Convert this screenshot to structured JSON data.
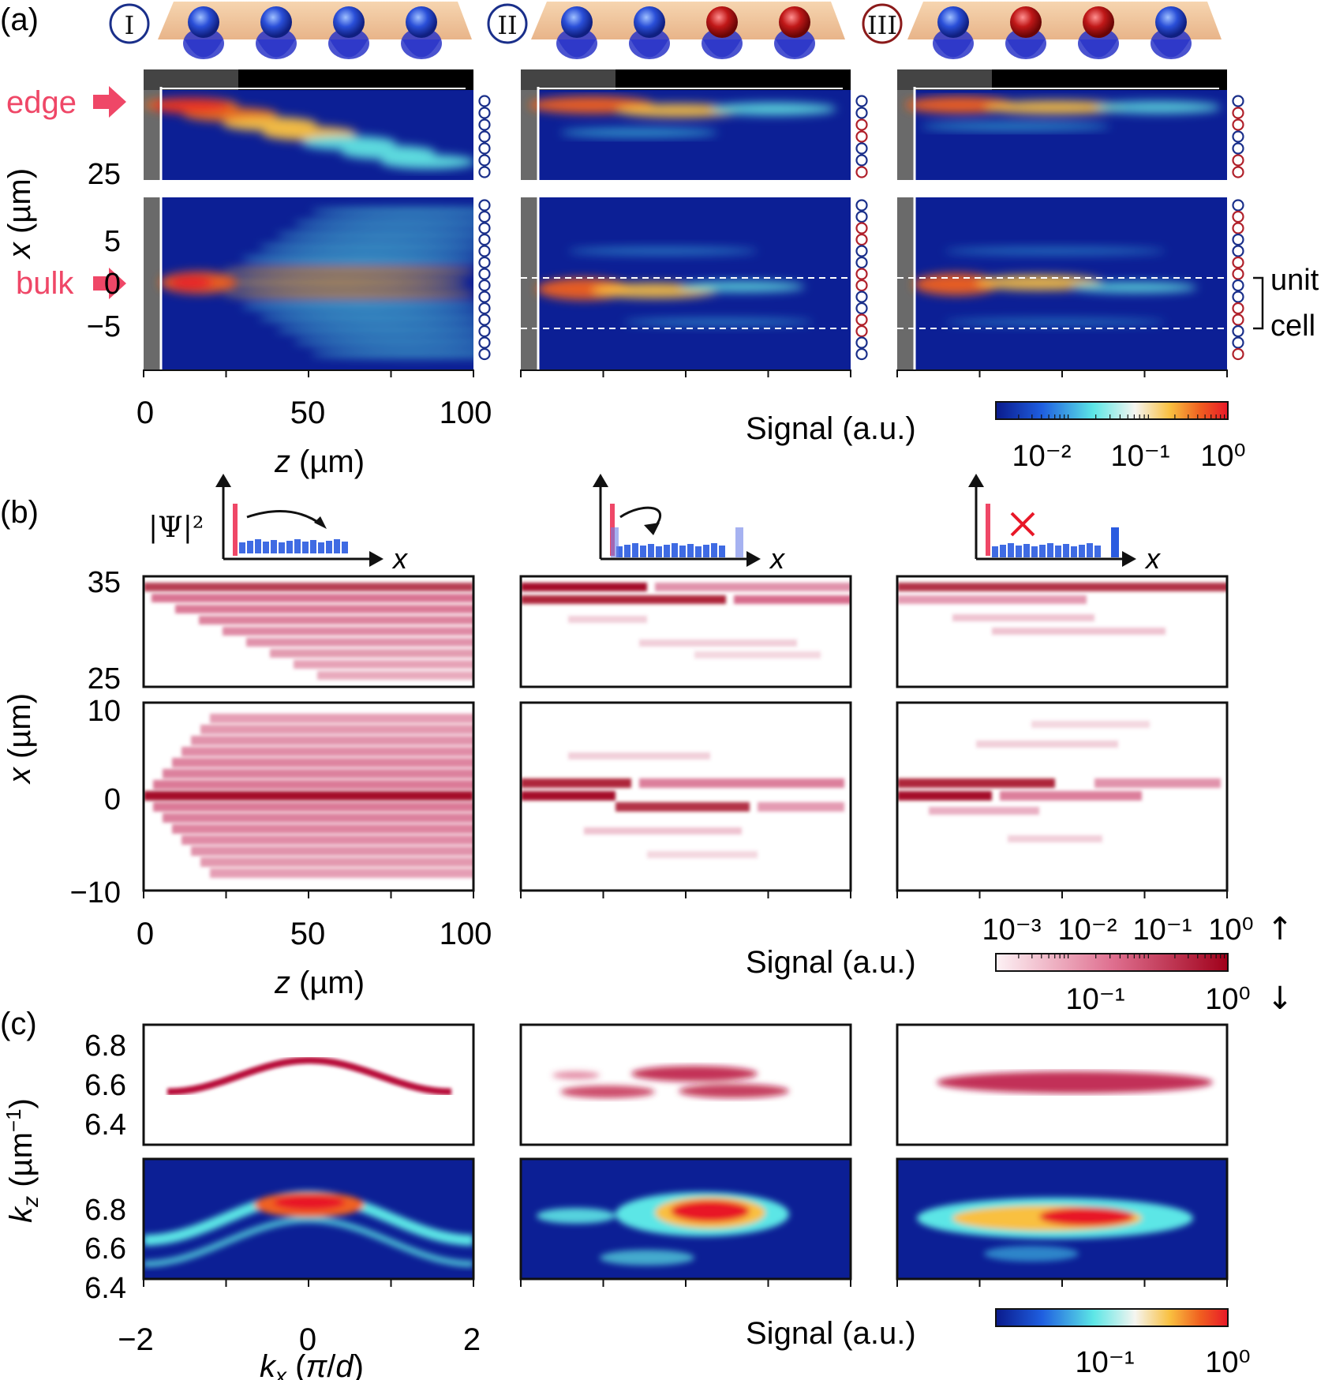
{
  "panels": {
    "a": "(a)",
    "b": "(b)",
    "c": "(c)"
  },
  "columns": [
    {
      "roman": "I",
      "color": "#1a2f8a",
      "spheres": [
        "blue",
        "blue",
        "blue",
        "blue"
      ]
    },
    {
      "roman": "II",
      "color": "#1a2f8a",
      "spheres": [
        "blue",
        "blue",
        "red",
        "red"
      ]
    },
    {
      "roman": "III",
      "color": "#8b1a1a",
      "spheres": [
        "blue",
        "red",
        "red",
        "blue"
      ]
    }
  ],
  "colors": {
    "red_label": "#ef4767",
    "blue_ring": "#1a2f8a",
    "red_ring": "#b0202a"
  },
  "a": {
    "edge_label": "edge",
    "bulk_label": "bulk",
    "ylabel": "x (µm)",
    "yticks_top": [
      "25"
    ],
    "yticks_bottom": [
      "5",
      "0",
      "−5"
    ],
    "xticks": [
      "0",
      "50",
      "100"
    ],
    "xlabel": "z (µm)",
    "unit_label": "unit",
    "cell_label": "cell",
    "signal_label": "Signal (a.u.)",
    "cbar_ticks": [
      "10⁻²",
      "10⁻¹",
      "10⁰"
    ]
  },
  "b": {
    "psi_label": "|Ψ|²",
    "x_axis": "x",
    "ylabel": "x (µm)",
    "yticks_top": [
      "35",
      "25"
    ],
    "yticks_bottom": [
      "10",
      "0",
      "−10"
    ],
    "xticks": [
      "0",
      "50",
      "100"
    ],
    "xlabel": "z (µm)",
    "signal_label": "Signal (a.u.)",
    "cbar_top_ticks": [
      "10⁻³",
      "10⁻²",
      "10⁻¹",
      "10⁰"
    ],
    "cbar_bottom_ticks": [
      "10⁻¹",
      "10⁰"
    ],
    "up_arrow": "↑",
    "down_arrow": "↓"
  },
  "c": {
    "yticks": [
      "6.8",
      "6.6",
      "6.4"
    ],
    "ylabel": "kz (µm⁻¹)",
    "xticks": [
      "−2",
      "0",
      "2"
    ],
    "xlabel": "kx (π/d)",
    "signal_label": "Signal (a.u.)",
    "cbar_ticks": [
      "10⁻¹",
      "10⁰"
    ]
  }
}
